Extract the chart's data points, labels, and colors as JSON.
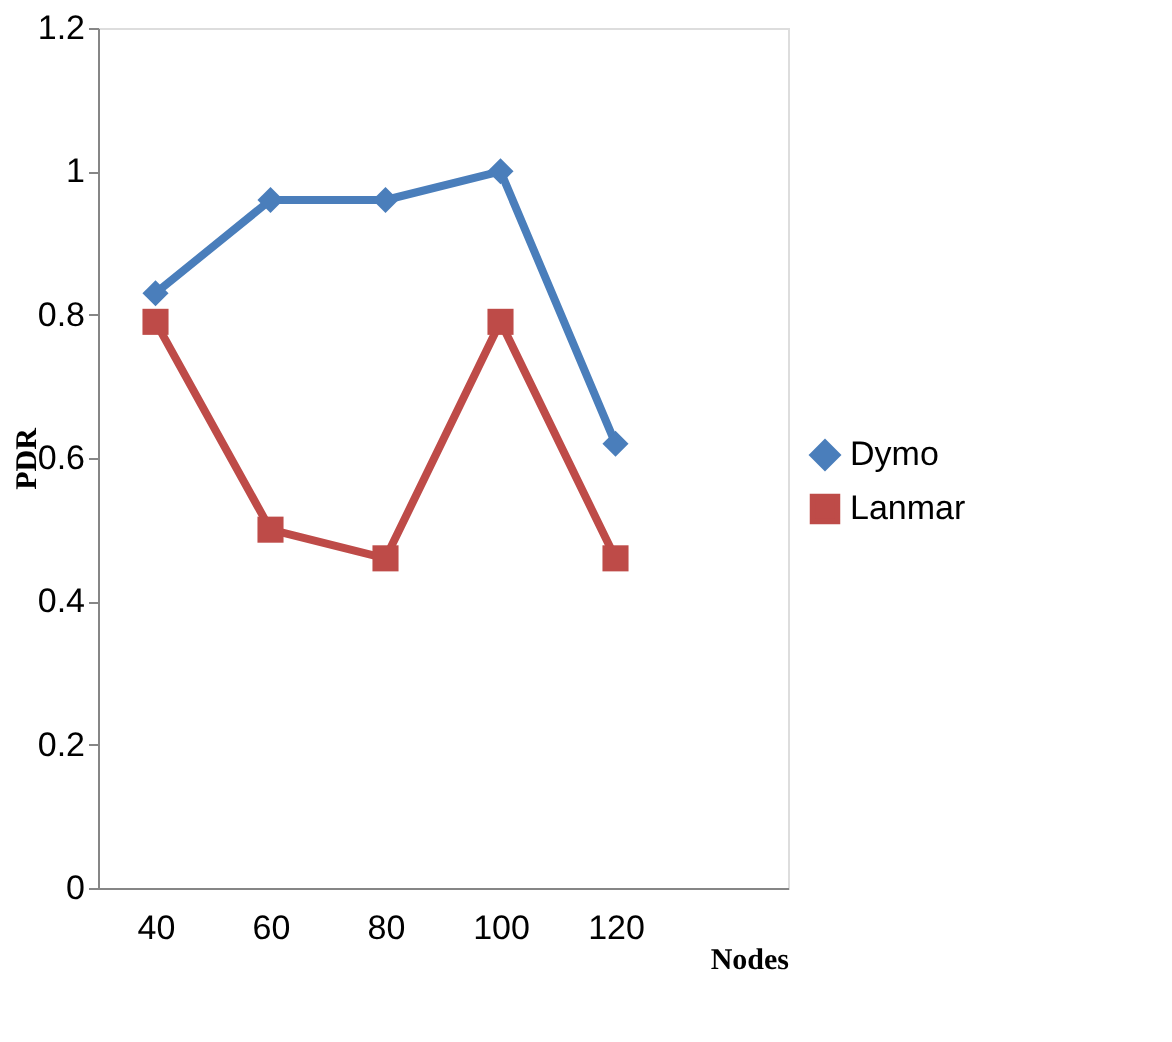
{
  "chart_data": {
    "type": "line",
    "xlabel": "Nodes",
    "ylabel": "PDR",
    "categories": [
      "40",
      "60",
      "80",
      "100",
      "120"
    ],
    "series": [
      {
        "name": "Dymo",
        "color": "#4a7ebb",
        "marker": "diamond",
        "values": [
          0.83,
          0.96,
          0.96,
          1,
          0.62
        ]
      },
      {
        "name": "Lanmar",
        "color": "#be4b48",
        "marker": "square",
        "values": [
          0.79,
          0.5,
          0.46,
          0.79,
          0.46
        ]
      }
    ],
    "ylim": [
      0,
      1.2
    ],
    "yticks": [
      0,
      0.2,
      0.4,
      0.6,
      0.8,
      1,
      1.2
    ],
    "grid": false,
    "legend": "right",
    "line_style": "solid"
  }
}
